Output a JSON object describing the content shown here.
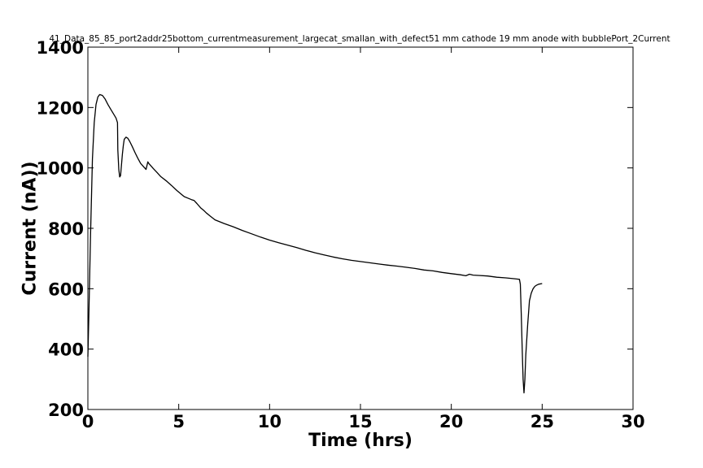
{
  "chart_data": {
    "type": "line",
    "title": "41_Data_85_85_port2addr25bottom_currentmeasurement_largecat_smallan_with_defect51 mm cathode 19 mm anode with bubblePort_2Current",
    "xlabel": "Time (hrs)",
    "ylabel": "Current (nA))",
    "xlim": [
      0,
      30
    ],
    "ylim": [
      200,
      1400
    ],
    "xticks": [
      0,
      5,
      10,
      15,
      20,
      25,
      30
    ],
    "yticks": [
      200,
      400,
      600,
      800,
      1000,
      1200,
      1400
    ],
    "grid": false,
    "line_color": "#000000",
    "series": [
      {
        "x": [
          0.0,
          0.05,
          0.15,
          0.25,
          0.35,
          0.45,
          0.55,
          0.65,
          0.8,
          0.95,
          1.1,
          1.25,
          1.4,
          1.55,
          1.63,
          1.65,
          1.7,
          1.75,
          1.8,
          1.85,
          1.9,
          1.95,
          2.0,
          2.1,
          2.2,
          2.3,
          2.45,
          2.6,
          2.75,
          2.9,
          3.05,
          3.2,
          3.3,
          3.35,
          3.45,
          3.6,
          3.8,
          4.0,
          4.3,
          4.6,
          4.9,
          5.2,
          5.3,
          5.5,
          5.7,
          5.85,
          6.0,
          6.2,
          6.4,
          6.5,
          6.7,
          7.0,
          7.5,
          8.0,
          8.5,
          9.0,
          9.5,
          10.0,
          10.5,
          11.0,
          11.5,
          12.0,
          12.5,
          13.0,
          13.5,
          14.0,
          14.5,
          15.0,
          15.5,
          16.0,
          16.5,
          17.0,
          17.5,
          18.0,
          18.5,
          19.0,
          19.5,
          20.0,
          20.5,
          20.8,
          21.0,
          21.2,
          21.5,
          22.0,
          22.5,
          23.0,
          23.5,
          23.75,
          23.8,
          23.85,
          23.9,
          23.95,
          24.0,
          24.05,
          24.1,
          24.2,
          24.3,
          24.4,
          24.5,
          24.6,
          24.7,
          24.8,
          25.0
        ],
        "y": [
          375,
          500,
          780,
          1030,
          1150,
          1210,
          1235,
          1243,
          1240,
          1228,
          1210,
          1195,
          1180,
          1165,
          1150,
          1060,
          995,
          970,
          975,
          1010,
          1045,
          1075,
          1095,
          1102,
          1098,
          1088,
          1070,
          1050,
          1032,
          1015,
          1005,
          995,
          1020,
          1015,
          1008,
          998,
          985,
          972,
          958,
          942,
          925,
          910,
          905,
          900,
          895,
          892,
          882,
          868,
          858,
          852,
          842,
          828,
          816,
          805,
          793,
          782,
          771,
          761,
          752,
          744,
          736,
          727,
          719,
          712,
          705,
          699,
          694,
          690,
          686,
          682,
          678,
          675,
          671,
          667,
          662,
          659,
          654,
          650,
          646,
          643,
          648,
          645,
          644,
          642,
          638,
          636,
          633,
          631,
          615,
          520,
          400,
          300,
          255,
          300,
          380,
          480,
          560,
          585,
          600,
          608,
          612,
          615,
          617
        ]
      }
    ]
  }
}
